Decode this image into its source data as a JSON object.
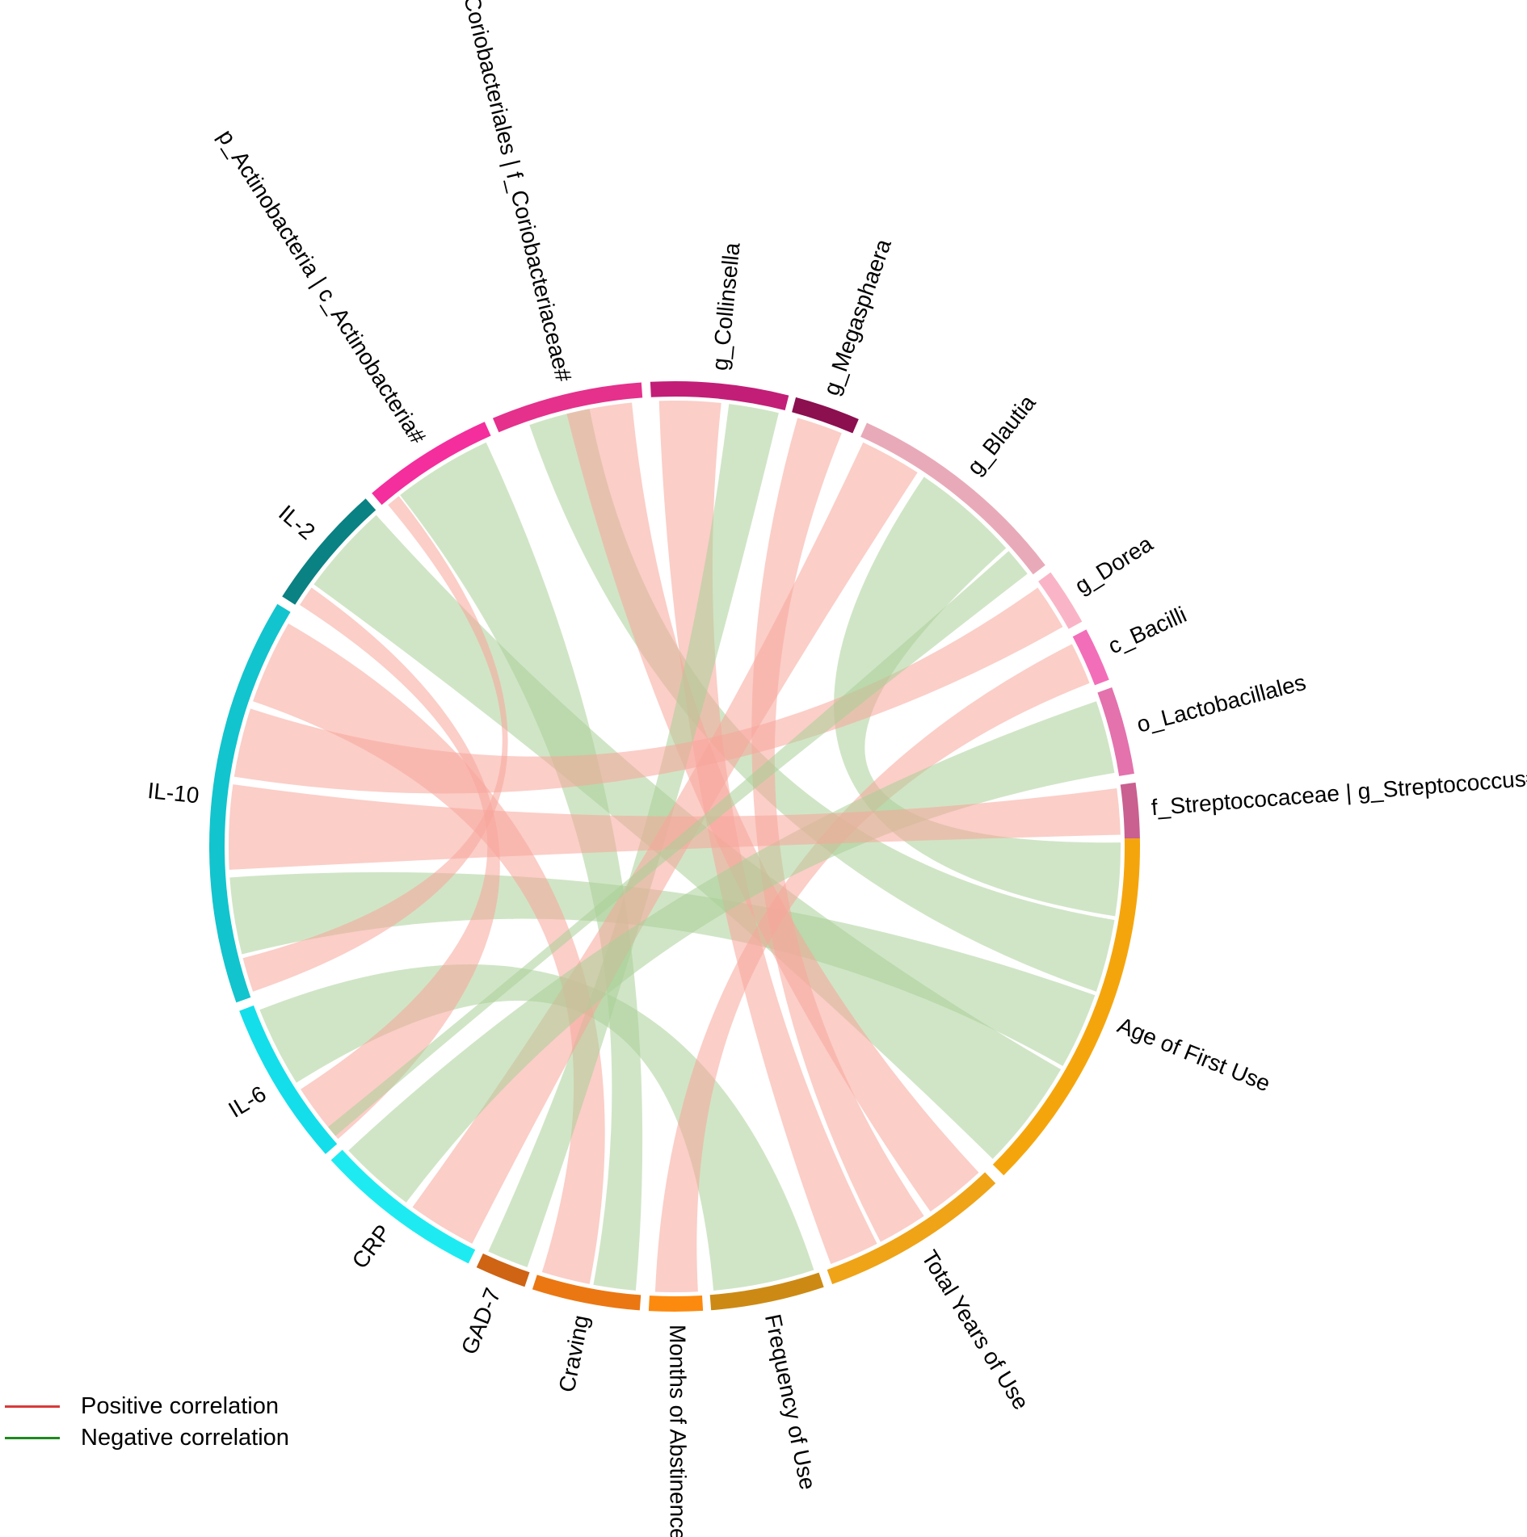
{
  "chart_data": {
    "type": "chord",
    "title": "",
    "segments": [
      {
        "id": "age",
        "label": "Age of First Use",
        "start": -1.0,
        "end": 45.0,
        "color": "#F5A50C"
      },
      {
        "id": "tyu",
        "label": "Total Years of Use",
        "start": 46.4,
        "end": 70.2,
        "color": "#EFA317"
      },
      {
        "id": "freq",
        "label": "Frequency of Use",
        "start": 71.3,
        "end": 85.5,
        "color": "#CC8A15"
      },
      {
        "id": "moa",
        "label": "Months of Abstinence",
        "start": 86.5,
        "end": 93.2,
        "color": "#FC8A0E"
      },
      {
        "id": "crav",
        "label": "Craving",
        "start": 94.3,
        "end": 107.8,
        "color": "#EB7712"
      },
      {
        "id": "gad",
        "label": "GAD-7",
        "start": 108.8,
        "end": 115.2,
        "color": "#CE6414"
      },
      {
        "id": "crp",
        "label": "CRP",
        "start": 116.3,
        "end": 137.6,
        "color": "#1EEBF1"
      },
      {
        "id": "il6",
        "label": "IL-6",
        "start": 138.6,
        "end": 159.3,
        "color": "#14DEEA"
      },
      {
        "id": "il10",
        "label": "IL-10",
        "start": 160.4,
        "end": 211.4,
        "color": "#12C4CD"
      },
      {
        "id": "il2",
        "label": "IL-2",
        "start": 212.5,
        "end": 228.4,
        "color": "#0A8182"
      },
      {
        "id": "pact",
        "label": "p_Actinobacteria | c_Actinobacteria#",
        "start": 229.4,
        "end": 245.9,
        "color": "#F42E9D"
      },
      {
        "id": "ocor",
        "label": "o_Coriobacteriales | f_Coriobacteriaceae#",
        "start": 247.0,
        "end": 265.9,
        "color": "#E5308C"
      },
      {
        "id": "coll",
        "label": "g_Collinsella",
        "start": 267.0,
        "end": 284.2,
        "color": "#C21E77"
      },
      {
        "id": "mega",
        "label": "g_Megasphaera",
        "start": 285.1,
        "end": 293.3,
        "color": "#8C0F50"
      },
      {
        "id": "blau",
        "label": "g_Blautia",
        "start": 294.4,
        "end": 322.8,
        "color": "#E8AAB9"
      },
      {
        "id": "dore",
        "label": "g_Dorea",
        "start": 323.9,
        "end": 331.1,
        "color": "#F9B5C7"
      },
      {
        "id": "baci",
        "label": "c_Bacilli",
        "start": 332.2,
        "end": 339.0,
        "color": "#F36EB8"
      },
      {
        "id": "lact",
        "label": "o_Lactobacillales",
        "start": 340.0,
        "end": 351.0,
        "color": "#E372AD"
      },
      {
        "id": "stre",
        "label": "f_Streptococaceae | g_Streptococcus#",
        "start": 352.1,
        "end": 359.0,
        "color": "#C9608F"
      }
    ],
    "links": [
      {
        "from": "age",
        "a": [
          -0.5,
          9.0
        ],
        "to": "blau",
        "b": [
          304.0,
          318.0
        ],
        "sign": "negative"
      },
      {
        "from": "age",
        "a": [
          9.5,
          19.0
        ],
        "to": "ocor",
        "b": [
          251.0,
          259.0
        ],
        "sign": "negative"
      },
      {
        "from": "age",
        "a": [
          19.5,
          29.5
        ],
        "to": "il10",
        "b": [
          166.0,
          176.0
        ],
        "sign": "negative"
      },
      {
        "from": "age",
        "a": [
          30.0,
          44.5
        ],
        "to": "il2",
        "b": [
          216.0,
          228.0
        ],
        "sign": "negative"
      },
      {
        "from": "tyu",
        "a": [
          47.0,
          55.0
        ],
        "to": "ocor",
        "b": [
          256.0,
          264.5
        ],
        "sign": "positive"
      },
      {
        "from": "tyu",
        "a": [
          56.0,
          62.5
        ],
        "to": "mega",
        "b": [
          286.0,
          292.0
        ],
        "sign": "positive"
      },
      {
        "from": "tyu",
        "a": [
          63.0,
          69.5
        ],
        "to": "coll",
        "b": [
          268.0,
          276.0
        ],
        "sign": "positive"
      },
      {
        "from": "freq",
        "a": [
          71.8,
          85.0
        ],
        "to": "il6",
        "b": [
          148.0,
          158.5
        ],
        "sign": "negative"
      },
      {
        "from": "moa",
        "a": [
          87.0,
          92.5
        ],
        "to": "baci",
        "b": [
          333.0,
          338.5
        ],
        "sign": "positive"
      },
      {
        "from": "crav",
        "a": [
          95.0,
          100.5
        ],
        "to": "pact",
        "b": [
          232.0,
          245.0
        ],
        "sign": "negative"
      },
      {
        "from": "crav",
        "a": [
          101.0,
          107.3
        ],
        "to": "il10",
        "b": [
          199.0,
          210.0
        ],
        "sign": "positive"
      },
      {
        "from": "gad",
        "a": [
          109.3,
          114.7
        ],
        "to": "coll",
        "b": [
          277.0,
          283.5
        ],
        "sign": "negative"
      },
      {
        "from": "crp",
        "a": [
          117.0,
          126.0
        ],
        "to": "blau",
        "b": [
          295.0,
          303.0
        ],
        "sign": "positive"
      },
      {
        "from": "crp",
        "a": [
          127.0,
          137.0
        ],
        "to": "lact",
        "b": [
          341.0,
          350.5
        ],
        "sign": "negative"
      },
      {
        "from": "il6",
        "a": [
          139.0,
          147.0
        ],
        "to": "il2",
        "b": [
          212.8,
          215.5
        ],
        "sign": "positive"
      },
      {
        "from": "il10",
        "a": [
          177.0,
          188.0
        ],
        "to": "stre",
        "b": [
          352.5,
          358.5
        ],
        "sign": "positive"
      },
      {
        "from": "il10",
        "a": [
          189.0,
          198.0
        ],
        "to": "dore",
        "b": [
          324.5,
          330.5
        ],
        "sign": "positive"
      },
      {
        "from": "il10",
        "a": [
          161.0,
          165.5
        ],
        "to": "pact",
        "b": [
          230.0,
          231.8
        ],
        "sign": "positive"
      },
      {
        "from": "blau",
        "a": [
          318.5,
          322.3
        ],
        "to": "il6",
        "b": [
          139.5,
          141.0
        ],
        "sign": "negative"
      }
    ]
  },
  "legend": {
    "items": [
      {
        "label": "Positive correlation",
        "color": "#D93A3A"
      },
      {
        "label": "Negative correlation",
        "color": "#1E8A1E"
      }
    ]
  },
  "colors": {
    "positive_ribbon": "#F8A59B",
    "negative_ribbon": "#A9CF98"
  }
}
